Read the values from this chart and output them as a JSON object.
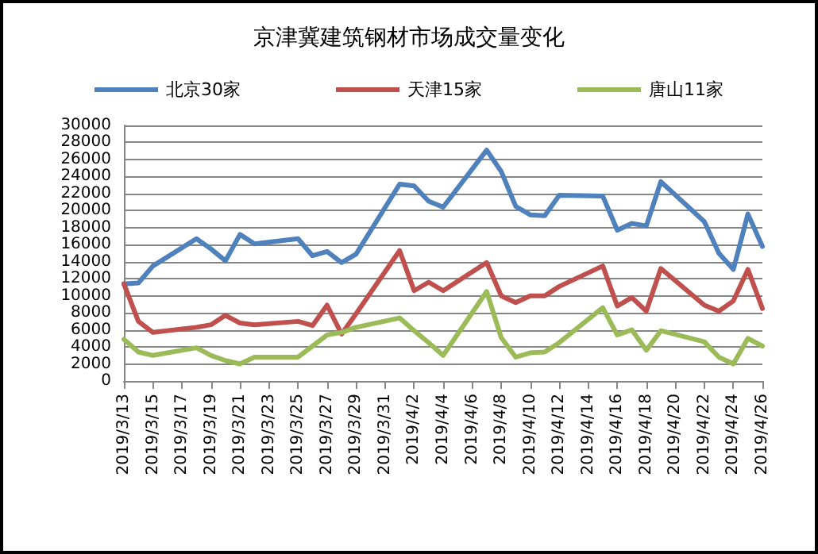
{
  "chart_data": {
    "type": "line",
    "title": "京津冀建筑钢材市场成交量变化",
    "x": [
      "2019-03-13",
      "2019-03-14",
      "2019-03-15",
      "2019-03-18",
      "2019-03-19",
      "2019-03-20",
      "2019-03-21",
      "2019-03-22",
      "2019-03-25",
      "2019-03-26",
      "2019-03-27",
      "2019-03-28",
      "2019-03-29",
      "2019-04-01",
      "2019-04-02",
      "2019-04-03",
      "2019-04-04",
      "2019-04-07",
      "2019-04-08",
      "2019-04-09",
      "2019-04-10",
      "2019-04-11",
      "2019-04-12",
      "2019-04-15",
      "2019-04-16",
      "2019-04-17",
      "2019-04-18",
      "2019-04-19",
      "2019-04-22",
      "2019-04-23",
      "2019-04-24",
      "2019-04-25",
      "2019-04-26"
    ],
    "series": [
      {
        "name": "北京30家",
        "color": "#4f81bd",
        "values": [
          11400,
          11500,
          13500,
          16700,
          15500,
          14100,
          17200,
          16100,
          16700,
          14700,
          15200,
          13900,
          14900,
          23100,
          22900,
          21100,
          20400,
          27100,
          24600,
          20500,
          19500,
          19400,
          21800,
          21700,
          17700,
          18500,
          18200,
          23400,
          18700,
          15000,
          13100,
          19600,
          15800
        ]
      },
      {
        "name": "天津15家",
        "color": "#c0504d",
        "values": [
          11400,
          7000,
          5700,
          6300,
          6600,
          7700,
          6800,
          6600,
          7000,
          6500,
          8900,
          5500,
          7900,
          15300,
          10600,
          11600,
          10600,
          13900,
          10000,
          9200,
          10000,
          10000,
          11100,
          13500,
          8800,
          9800,
          8200,
          13200,
          8900,
          8200,
          9400,
          13100,
          8500
        ]
      },
      {
        "name": "唐山11家",
        "color": "#9bbb59",
        "values": [
          4900,
          3400,
          3000,
          3900,
          3000,
          2400,
          2000,
          2800,
          2800,
          4100,
          5400,
          5700,
          6300,
          7400,
          5900,
          4500,
          3000,
          10500,
          5100,
          2800,
          3300,
          3400,
          4500,
          8600,
          5400,
          6000,
          3600,
          5900,
          4600,
          2800,
          2000,
          5000,
          4100
        ]
      }
    ],
    "xlim": [
      "2019-03-13",
      "2019-04-26"
    ],
    "xticks": [
      {
        "value": "2019-03-13",
        "label": "2019/3/13"
      },
      {
        "value": "2019-03-15",
        "label": "2019/3/15"
      },
      {
        "value": "2019-03-17",
        "label": "2019/3/17"
      },
      {
        "value": "2019-03-19",
        "label": "2019/3/19"
      },
      {
        "value": "2019-03-21",
        "label": "2019/3/21"
      },
      {
        "value": "2019-03-23",
        "label": "2019/3/23"
      },
      {
        "value": "2019-03-25",
        "label": "2019/3/25"
      },
      {
        "value": "2019-03-27",
        "label": "2019/3/27"
      },
      {
        "value": "2019-03-29",
        "label": "2019/3/29"
      },
      {
        "value": "2019-03-31",
        "label": "2019/3/31"
      },
      {
        "value": "2019-04-02",
        "label": "2019/4/2"
      },
      {
        "value": "2019-04-04",
        "label": "2019/4/4"
      },
      {
        "value": "2019-04-06",
        "label": "2019/4/6"
      },
      {
        "value": "2019-04-08",
        "label": "2019/4/8"
      },
      {
        "value": "2019-04-10",
        "label": "2019/4/10"
      },
      {
        "value": "2019-04-12",
        "label": "2019/4/12"
      },
      {
        "value": "2019-04-14",
        "label": "2019/4/14"
      },
      {
        "value": "2019-04-16",
        "label": "2019/4/16"
      },
      {
        "value": "2019-04-18",
        "label": "2019/4/18"
      },
      {
        "value": "2019-04-20",
        "label": "2019/4/20"
      },
      {
        "value": "2019-04-22",
        "label": "2019/4/22"
      },
      {
        "value": "2019-04-24",
        "label": "2019/4/24"
      },
      {
        "value": "2019-04-26",
        "label": "2019/4/26"
      }
    ],
    "ylim": [
      0,
      30000
    ],
    "yticks": [
      0,
      2000,
      4000,
      6000,
      8000,
      10000,
      12000,
      14000,
      16000,
      18000,
      20000,
      22000,
      24000,
      26000,
      28000,
      30000
    ],
    "grid": "y",
    "legend": "top",
    "marker": "none",
    "line_style": "solid"
  }
}
